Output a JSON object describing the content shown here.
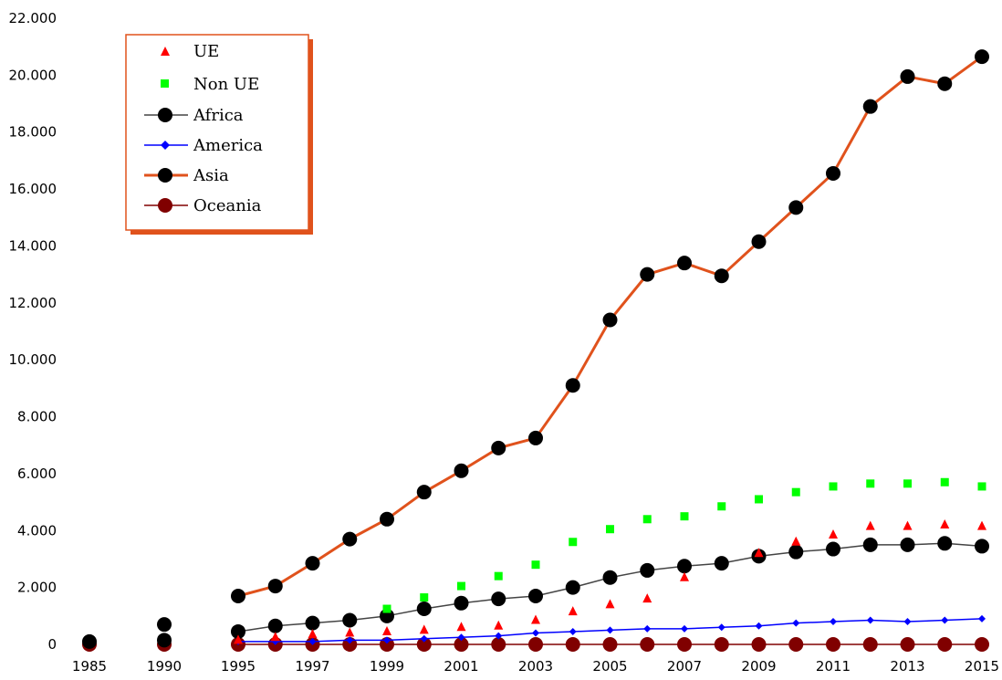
{
  "chart_data": {
    "type": "line",
    "title": "",
    "xlabel": "",
    "ylabel": "",
    "ylim": [
      0,
      22000
    ],
    "y_ticks": [
      0,
      2000,
      4000,
      6000,
      8000,
      10000,
      12000,
      14000,
      16000,
      18000,
      20000,
      22000
    ],
    "y_tick_labels": [
      "0",
      "2.000",
      "4.000",
      "6.000",
      "8.000",
      "10.000",
      "12.000",
      "14.000",
      "16.000",
      "18.000",
      "20.000",
      "22.000"
    ],
    "x_categories": [
      "1985",
      "1990",
      "1995",
      "1996",
      "1997",
      "1998",
      "1999",
      "2000",
      "2001",
      "2002",
      "2003",
      "2004",
      "2005",
      "2006",
      "2007",
      "2008",
      "2009",
      "2010",
      "2011",
      "2012",
      "2013",
      "2014",
      "2015"
    ],
    "x_tick_labels": [
      "1985",
      "1990",
      "1995",
      "1997",
      "1999",
      "2001",
      "2003",
      "2005",
      "2007",
      "2009",
      "2011",
      "2013",
      "2015"
    ],
    "legend_position": "top-left",
    "series": [
      {
        "name": "UE",
        "color": "#ff0000",
        "marker": "triangle",
        "line": false,
        "values": [
          null,
          null,
          150,
          250,
          350,
          400,
          450,
          500,
          600,
          650,
          850,
          1150,
          1400,
          1600,
          2350,
          null,
          3200,
          3600,
          3850,
          4150,
          4150,
          4200,
          4150
        ]
      },
      {
        "name": "Non UE",
        "color": "#00ff00",
        "marker": "square",
        "line": false,
        "values": [
          null,
          null,
          null,
          null,
          null,
          null,
          1250,
          1650,
          2050,
          2400,
          2800,
          3600,
          4050,
          4400,
          4500,
          4850,
          5100,
          5350,
          5550,
          5650,
          5650,
          5700,
          5550
        ]
      },
      {
        "name": "Africa",
        "color": "#000000",
        "marker": "circle",
        "line": true,
        "line_color": "#444444",
        "values": [
          100,
          150,
          450,
          650,
          750,
          850,
          1000,
          1250,
          1450,
          1600,
          1700,
          2000,
          2350,
          2600,
          2750,
          2850,
          3100,
          3250,
          3350,
          3500,
          3500,
          3550,
          3450
        ]
      },
      {
        "name": "America",
        "color": "#0000ff",
        "marker": "diamond",
        "line": true,
        "line_color": "#0000ff",
        "values": [
          null,
          null,
          100,
          100,
          100,
          150,
          150,
          200,
          250,
          300,
          400,
          450,
          500,
          550,
          550,
          600,
          650,
          750,
          800,
          850,
          800,
          850,
          900
        ]
      },
      {
        "name": "Asia",
        "color": "#000000",
        "marker": "circle",
        "line": true,
        "line_color": "#e0521c",
        "values": [
          null,
          700,
          1700,
          2050,
          2850,
          3700,
          4400,
          5350,
          6100,
          6900,
          7250,
          9100,
          11400,
          13000,
          13400,
          12950,
          14150,
          15350,
          16550,
          18900,
          19950,
          19700,
          20650
        ]
      },
      {
        "name": "Oceania",
        "color": "#800000",
        "marker": "circle",
        "line": true,
        "line_color": "#800000",
        "values": [
          0,
          0,
          0,
          0,
          0,
          0,
          0,
          0,
          0,
          0,
          0,
          0,
          0,
          0,
          0,
          0,
          0,
          0,
          0,
          0,
          0,
          0,
          0
        ]
      }
    ]
  }
}
